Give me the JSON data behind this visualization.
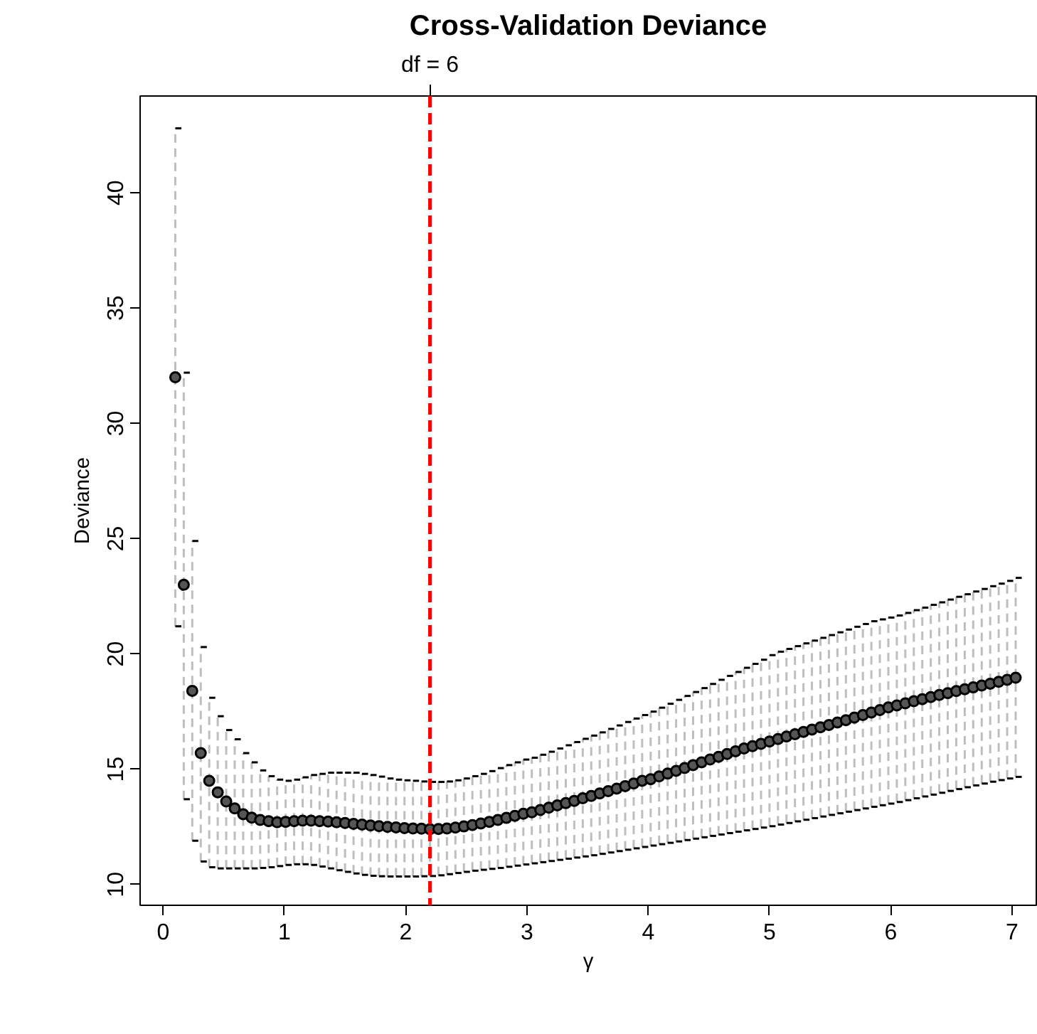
{
  "chart_data": {
    "type": "scatter",
    "title": "Cross-Validation Deviance",
    "xlabel": "γ",
    "ylabel": "Deviance",
    "x": [
      0.1,
      0.17,
      0.24,
      0.31,
      0.38,
      0.45,
      0.52,
      0.59,
      0.66,
      0.73,
      0.8,
      0.87,
      0.94,
      1.01,
      1.08,
      1.15,
      1.22,
      1.29,
      1.36,
      1.43,
      1.5,
      1.57,
      1.64,
      1.71,
      1.78,
      1.85,
      1.92,
      1.99,
      2.06,
      2.13,
      2.2,
      2.27,
      2.34,
      2.41,
      2.48,
      2.55,
      2.62,
      2.69,
      2.76,
      2.83,
      2.9,
      2.97,
      3.04,
      3.11,
      3.18,
      3.25,
      3.32,
      3.39,
      3.46,
      3.53,
      3.6,
      3.67,
      3.74,
      3.81,
      3.88,
      3.95,
      4.02,
      4.09,
      4.16,
      4.23,
      4.3,
      4.37,
      4.44,
      4.51,
      4.58,
      4.65,
      4.72,
      4.79,
      4.86,
      4.93,
      5.0,
      5.07,
      5.14,
      5.21,
      5.28,
      5.35,
      5.42,
      5.49,
      5.56,
      5.63,
      5.7,
      5.77,
      5.84,
      5.91,
      5.98,
      6.05,
      6.12,
      6.19,
      6.26,
      6.33,
      6.4,
      6.47,
      6.54,
      6.61,
      6.68,
      6.75,
      6.82,
      6.89,
      6.96,
      7.03
    ],
    "series": [
      {
        "color": "#000000",
        "values": [
          32.0,
          23.0,
          18.4,
          15.7,
          14.5,
          14.0,
          13.6,
          13.3,
          13.05,
          12.9,
          12.8,
          12.75,
          12.7,
          12.72,
          12.75,
          12.77,
          12.77,
          12.75,
          12.73,
          12.7,
          12.67,
          12.63,
          12.6,
          12.56,
          12.53,
          12.5,
          12.48,
          12.45,
          12.43,
          12.42,
          12.4,
          12.41,
          12.43,
          12.47,
          12.52,
          12.58,
          12.65,
          12.72,
          12.8,
          12.89,
          12.98,
          13.07,
          13.13,
          13.23,
          13.33,
          13.43,
          13.53,
          13.63,
          13.74,
          13.84,
          13.95,
          14.05,
          14.16,
          14.27,
          14.38,
          14.5,
          14.57,
          14.69,
          14.81,
          14.93,
          15.05,
          15.18,
          15.3,
          15.42,
          15.54,
          15.66,
          15.78,
          15.9,
          16.0,
          16.1,
          16.2,
          16.31,
          16.42,
          16.52,
          16.62,
          16.72,
          16.82,
          16.92,
          17.03,
          17.13,
          17.24,
          17.35,
          17.46,
          17.57,
          17.68,
          17.77,
          17.86,
          17.95,
          18.04,
          18.13,
          18.22,
          18.3,
          18.39,
          18.47,
          18.55,
          18.63,
          18.71,
          18.79,
          18.88,
          18.97
        ],
        "errors": [
          [
            21.2,
            42.8
          ],
          [
            13.7,
            32.2
          ],
          [
            11.9,
            24.9
          ],
          [
            11.0,
            20.3
          ],
          [
            10.75,
            18.1
          ],
          [
            10.7,
            17.3
          ],
          [
            10.7,
            16.7
          ],
          [
            10.7,
            16.3
          ],
          [
            10.7,
            15.7
          ],
          [
            10.7,
            15.3
          ],
          [
            10.72,
            14.95
          ],
          [
            10.75,
            14.7
          ],
          [
            10.8,
            14.55
          ],
          [
            10.85,
            14.5
          ],
          [
            10.88,
            14.55
          ],
          [
            10.88,
            14.65
          ],
          [
            10.85,
            14.75
          ],
          [
            10.78,
            14.8
          ],
          [
            10.7,
            14.85
          ],
          [
            10.62,
            14.85
          ],
          [
            10.55,
            14.85
          ],
          [
            10.48,
            14.85
          ],
          [
            10.42,
            14.8
          ],
          [
            10.38,
            14.75
          ],
          [
            10.36,
            14.68
          ],
          [
            10.35,
            14.6
          ],
          [
            10.35,
            14.55
          ],
          [
            10.35,
            14.52
          ],
          [
            10.35,
            14.5
          ],
          [
            10.36,
            14.47
          ],
          [
            10.37,
            14.45
          ],
          [
            10.4,
            14.45
          ],
          [
            10.45,
            14.47
          ],
          [
            10.5,
            14.52
          ],
          [
            10.55,
            14.6
          ],
          [
            10.6,
            14.7
          ],
          [
            10.64,
            14.8
          ],
          [
            10.68,
            14.92
          ],
          [
            10.72,
            15.05
          ],
          [
            10.77,
            15.18
          ],
          [
            10.82,
            15.3
          ],
          [
            10.87,
            15.42
          ],
          [
            10.92,
            15.5
          ],
          [
            10.97,
            15.63
          ],
          [
            11.02,
            15.76
          ],
          [
            11.07,
            15.9
          ],
          [
            11.12,
            16.04
          ],
          [
            11.17,
            16.18
          ],
          [
            11.22,
            16.32
          ],
          [
            11.27,
            16.46
          ],
          [
            11.33,
            16.6
          ],
          [
            11.39,
            16.75
          ],
          [
            11.45,
            16.9
          ],
          [
            11.51,
            17.05
          ],
          [
            11.57,
            17.2
          ],
          [
            11.63,
            17.35
          ],
          [
            11.69,
            17.5
          ],
          [
            11.75,
            17.67
          ],
          [
            11.81,
            17.84
          ],
          [
            11.87,
            18.01
          ],
          [
            11.93,
            18.18
          ],
          [
            11.99,
            18.35
          ],
          [
            12.05,
            18.52
          ],
          [
            12.11,
            18.7
          ],
          [
            12.17,
            18.88
          ],
          [
            12.23,
            19.05
          ],
          [
            12.29,
            19.22
          ],
          [
            12.35,
            19.4
          ],
          [
            12.41,
            19.57
          ],
          [
            12.47,
            19.75
          ],
          [
            12.53,
            19.95
          ],
          [
            12.6,
            20.1
          ],
          [
            12.67,
            20.22
          ],
          [
            12.74,
            20.34
          ],
          [
            12.81,
            20.46
          ],
          [
            12.88,
            20.58
          ],
          [
            12.95,
            20.7
          ],
          [
            13.02,
            20.82
          ],
          [
            13.09,
            20.94
          ],
          [
            13.16,
            21.06
          ],
          [
            13.23,
            21.18
          ],
          [
            13.3,
            21.3
          ],
          [
            13.37,
            21.42
          ],
          [
            13.44,
            21.5
          ],
          [
            13.51,
            21.58
          ],
          [
            13.58,
            21.67
          ],
          [
            13.66,
            21.78
          ],
          [
            13.74,
            21.9
          ],
          [
            13.82,
            22.01
          ],
          [
            13.9,
            22.13
          ],
          [
            13.98,
            22.24
          ],
          [
            14.06,
            22.36
          ],
          [
            14.14,
            22.48
          ],
          [
            14.22,
            22.59
          ],
          [
            14.3,
            22.71
          ],
          [
            14.38,
            22.82
          ],
          [
            14.46,
            22.94
          ],
          [
            14.53,
            23.05
          ],
          [
            14.6,
            23.17
          ],
          [
            14.67,
            23.3
          ]
        ]
      }
    ],
    "xlim": [
      -0.19,
      7.2
    ],
    "ylim": [
      9.1,
      44.2
    ],
    "xticks": [
      0,
      1,
      2,
      3,
      4,
      5,
      6,
      7
    ],
    "yticks": [
      10,
      15,
      20,
      25,
      30,
      35,
      40
    ],
    "ref_lines": [
      {
        "axis": "x",
        "value": 2.2,
        "color": "#ff0000",
        "line_style": "dashed"
      }
    ],
    "annotations": [
      {
        "text": "df = 6",
        "x": 2.2
      }
    ],
    "marker": "circle",
    "grid": false
  }
}
